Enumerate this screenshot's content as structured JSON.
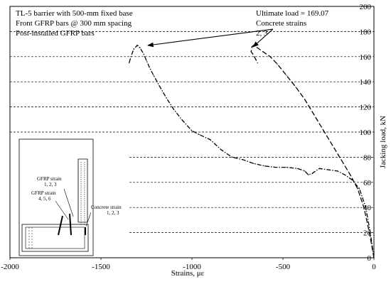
{
  "chart_data": {
    "type": "line",
    "annotation_left": [
      "TL-5 barrier with 500-mm fixed base",
      "Front GFRP bars @ 300 mm spacing",
      "Post-installed GFRP bars"
    ],
    "annotation_right": [
      "Ultimate load = 169.07",
      "Concrete strains",
      "2, 3"
    ],
    "xlabel": "Strains, με",
    "ylabel": "Jacking load, kN",
    "xlim": [
      -2000,
      0
    ],
    "ylim": [
      0,
      200
    ],
    "x_ticks": [
      "-2000",
      "-1500",
      "-1000",
      "-500",
      "0"
    ],
    "y_ticks": [
      "0",
      "20",
      "40",
      "60",
      "80",
      "100",
      "120",
      "140",
      "160",
      "180",
      "200"
    ],
    "grid": "horizontal dashed",
    "legend": "none",
    "inset_labels": {
      "gfrp_a": [
        "GFRP strain",
        "1, 2, 3"
      ],
      "gfrp_b": [
        "GFRP strain",
        "4, 5, 6"
      ],
      "concrete": [
        "Concrete  strain",
        "1, 2, 3"
      ]
    },
    "series": [
      {
        "style": "dash-dot",
        "x": [
          0,
          -20,
          -45,
          -80,
          -120,
          -160,
          -200,
          -250,
          -300,
          -340,
          -360,
          -380,
          -420,
          -480,
          -540,
          -600,
          -660,
          -720,
          -780,
          -840,
          -900,
          -960,
          -1000,
          -1050,
          -1100,
          -1140,
          -1180,
          -1210,
          -1235,
          -1250,
          -1265,
          -1285,
          -1300,
          -1320,
          -1335,
          -1345
        ],
        "y": [
          0,
          20,
          40,
          55,
          62,
          66,
          69,
          70,
          71,
          67,
          66,
          69,
          71,
          72,
          72,
          73,
          75,
          78,
          80,
          86,
          94,
          98,
          101,
          109,
          118,
          127,
          137,
          145,
          152,
          157,
          162,
          167,
          169.07,
          166,
          160,
          155
        ]
      },
      {
        "style": "dash",
        "x": [
          0,
          -25,
          -55,
          -90,
          -130,
          -180,
          -230,
          -280,
          -330,
          -380,
          -430,
          -480,
          -530,
          -570,
          -610,
          -640,
          -660,
          -670,
          -675,
          -665,
          -650,
          -640
        ],
        "y": [
          0,
          20,
          40,
          55,
          66,
          78,
          90,
          102,
          114,
          126,
          136,
          145,
          154,
          160,
          164,
          167,
          169.07,
          168,
          164,
          162,
          158,
          155
        ]
      }
    ]
  }
}
